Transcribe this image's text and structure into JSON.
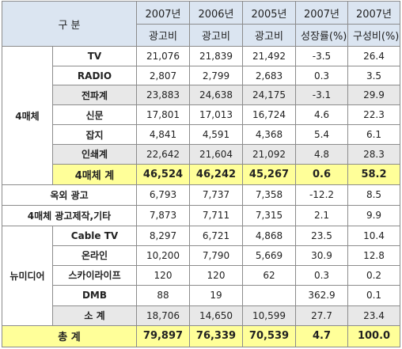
{
  "header": {
    "category_label": "구 분",
    "years": [
      "2007년",
      "2006년",
      "2005년",
      "2007년",
      "2007년"
    ],
    "metrics": [
      "광고비",
      "광고비",
      "광고비",
      "성장률(%)",
      "구성비(%)"
    ]
  },
  "groups": {
    "four_media": "4매체",
    "new_media": "뉴미디어"
  },
  "rows": [
    {
      "label": "TV",
      "v2007": "21,076",
      "v2006": "21,839",
      "v2005": "21,492",
      "growth": "-3.5",
      "share": "26.4"
    },
    {
      "label": "RADIO",
      "v2007": "2,807",
      "v2006": "2,799",
      "v2005": "2,683",
      "growth": "0.3",
      "share": "3.5"
    },
    {
      "label": "전파계",
      "v2007": "23,883",
      "v2006": "24,638",
      "v2005": "24,175",
      "growth": "-3.1",
      "share": "29.9"
    },
    {
      "label": "신문",
      "v2007": "17,801",
      "v2006": "17,013",
      "v2005": "16,724",
      "growth": "4.6",
      "share": "22.3"
    },
    {
      "label": "잡지",
      "v2007": "4,841",
      "v2006": "4,591",
      "v2005": "4,368",
      "growth": "5.4",
      "share": "6.1"
    },
    {
      "label": "인쇄계",
      "v2007": "22,642",
      "v2006": "21,604",
      "v2005": "21,092",
      "growth": "4.8",
      "share": "28.3"
    },
    {
      "label": "4매체 계",
      "v2007": "46,524",
      "v2006": "46,242",
      "v2005": "45,267",
      "growth": "0.6",
      "share": "58.2"
    },
    {
      "label": "옥외 광고",
      "v2007": "6,793",
      "v2006": "7,737",
      "v2005": "7,358",
      "growth": "-12.2",
      "share": "8.5"
    },
    {
      "label": "4매체 광고제작,기타",
      "v2007": "7,873",
      "v2006": "7,711",
      "v2005": "7,315",
      "growth": "2.1",
      "share": "9.9"
    },
    {
      "label": "Cable TV",
      "v2007": "8,297",
      "v2006": "6,721",
      "v2005": "4,868",
      "growth": "23.5",
      "share": "10.4"
    },
    {
      "label": "온라인",
      "v2007": "10,200",
      "v2006": "7,790",
      "v2005": "5,669",
      "growth": "30.9",
      "share": "12.8"
    },
    {
      "label": "스카이라이프",
      "v2007": "120",
      "v2006": "120",
      "v2005": "62",
      "growth": "0.3",
      "share": "0.2"
    },
    {
      "label": "DMB",
      "v2007": "88",
      "v2006": "19",
      "v2005": "",
      "growth": "362.9",
      "share": "0.1"
    },
    {
      "label": "소 계",
      "v2007": "18,706",
      "v2006": "14,650",
      "v2005": "10,599",
      "growth": "27.7",
      "share": "23.4"
    },
    {
      "label": "총 계",
      "v2007": "79,897",
      "v2006": "76,339",
      "v2005": "70,539",
      "growth": "4.7",
      "share": "100.0"
    }
  ]
}
